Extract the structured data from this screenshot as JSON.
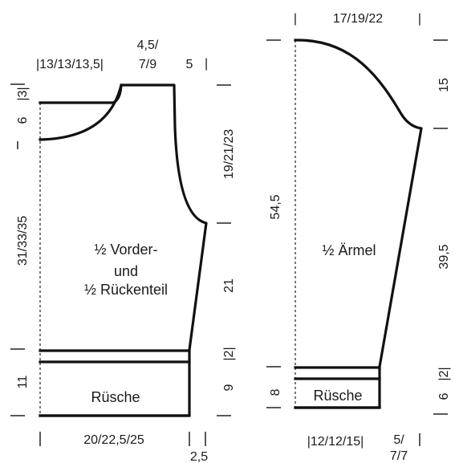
{
  "body_piece": {
    "label_line1": "½ Vorder-",
    "label_line2": "und",
    "label_line3": "½ Rückenteil",
    "ruffle_label": "Rüsche",
    "dim_shoulder": "|13/13/13,5|",
    "dim_neck_line1": "4,5/",
    "dim_neck_line2": "7/9",
    "dim_neck_right": "5",
    "dim_neck_right_bar": "|",
    "dim_left_top": "|3|",
    "dim_left_6": "6",
    "dim_left_main": "31/33/35",
    "dim_left_11": "11",
    "dim_right_armhole": "19/21/23",
    "dim_right_21": "21",
    "dim_right_2": "|2|",
    "dim_right_9": "9",
    "dim_bottom": "20/22,5/25",
    "dim_bottom_small": "2,5"
  },
  "sleeve_piece": {
    "label": "½ Ärmel",
    "ruffle_label": "Rüsche",
    "dim_top": "17/19/22",
    "dim_left_main": "54,5",
    "dim_left_8": "8",
    "dim_right_15": "15",
    "dim_right_39": "39,5",
    "dim_right_2": "|2|",
    "dim_right_6": "6",
    "dim_bottom": "|12/12/15|",
    "dim_bottom_right_line1": "5/",
    "dim_bottom_right_line2": "7/7"
  }
}
